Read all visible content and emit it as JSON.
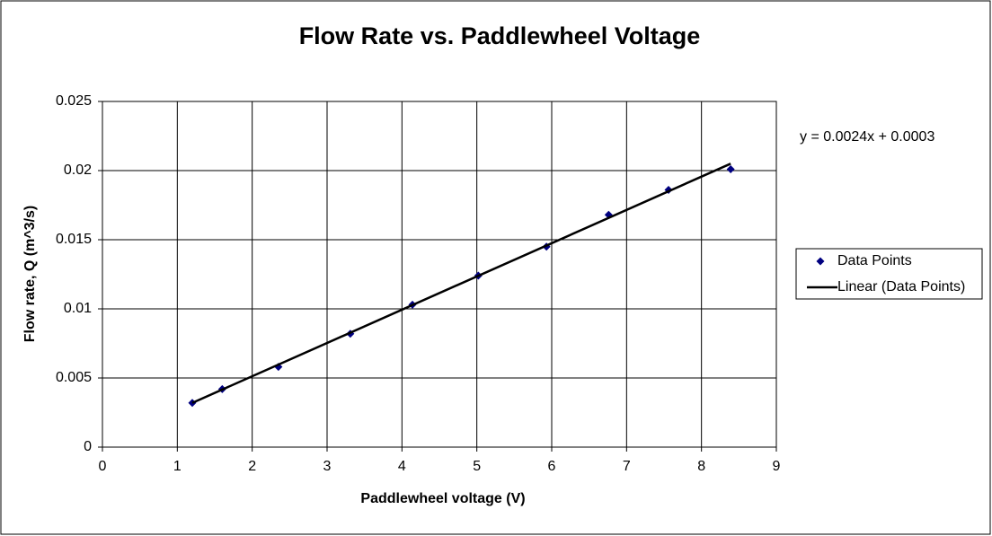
{
  "chart_data": {
    "type": "scatter",
    "title": "Flow Rate vs. Paddlewheel Voltage",
    "x_label": "Paddlewheel voltage (V)",
    "y_label": "Flow rate, Q (m^3/s)",
    "annotation": "y = 0.0024x + 0.0003",
    "xlim": [
      0,
      9
    ],
    "xticks": [
      0,
      1,
      2,
      3,
      4,
      5,
      6,
      7,
      8,
      9
    ],
    "ylim": [
      0,
      0.025
    ],
    "yticks": [
      0,
      0.005,
      0.01,
      0.015,
      0.02,
      0.025
    ],
    "grid": true,
    "legend": "right",
    "series": [
      {
        "name": "Data Points",
        "color": "#000080",
        "marker": "diamond",
        "x": [
          1.2,
          1.6,
          2.35,
          3.31,
          4.14,
          5.02,
          5.93,
          6.76,
          7.56,
          8.39
        ],
        "values": [
          0.0032,
          0.0042,
          0.0058,
          0.0082,
          0.0103,
          0.0124,
          0.0145,
          0.0168,
          0.0186,
          0.0201
        ]
      },
      {
        "name": "Linear (Data Points)",
        "color": "#000000",
        "marker": "line",
        "x": [
          1.2,
          8.39
        ],
        "values": [
          0.0032,
          0.0205
        ]
      }
    ]
  }
}
